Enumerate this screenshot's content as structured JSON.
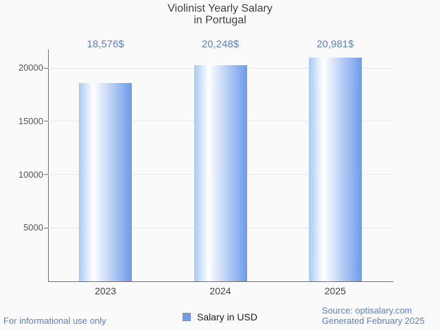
{
  "title": {
    "line1": "Violinist Yearly Salary",
    "line2": "in Portugal"
  },
  "chart_data": {
    "type": "bar",
    "title": "Violinist Yearly Salary in Portugal",
    "categories": [
      "2023",
      "2024",
      "2025"
    ],
    "series": [
      {
        "name": "Salary in USD",
        "values": [
          18576,
          20248,
          20981
        ],
        "value_labels": [
          "18,576$",
          "20,248$",
          "20,981$"
        ]
      }
    ],
    "xlabel": "",
    "ylabel": "",
    "yticks": [
      5000,
      10000,
      15000,
      20000
    ],
    "ylim": [
      0,
      21800
    ],
    "grid": true,
    "legend_position": "bottom",
    "bar_gradient": [
      "#a7c9f2",
      "#ffffff",
      "#6d9ae9"
    ]
  },
  "legend": {
    "label": "Salary in USD",
    "swatch_color": "#6d9eeb"
  },
  "footer": {
    "left": "For informational use only",
    "source": "Source: optisalary.com",
    "generated": "Generated February 2025"
  },
  "colors": {
    "value_label_blue": "#5a7fd6",
    "footer_blue": "#5a7fd6",
    "title_gray": "#3f3f3f",
    "axis_gray": "#6e6e6e",
    "gridline_gray": "#e6e6e6",
    "background": "#fafafa"
  }
}
